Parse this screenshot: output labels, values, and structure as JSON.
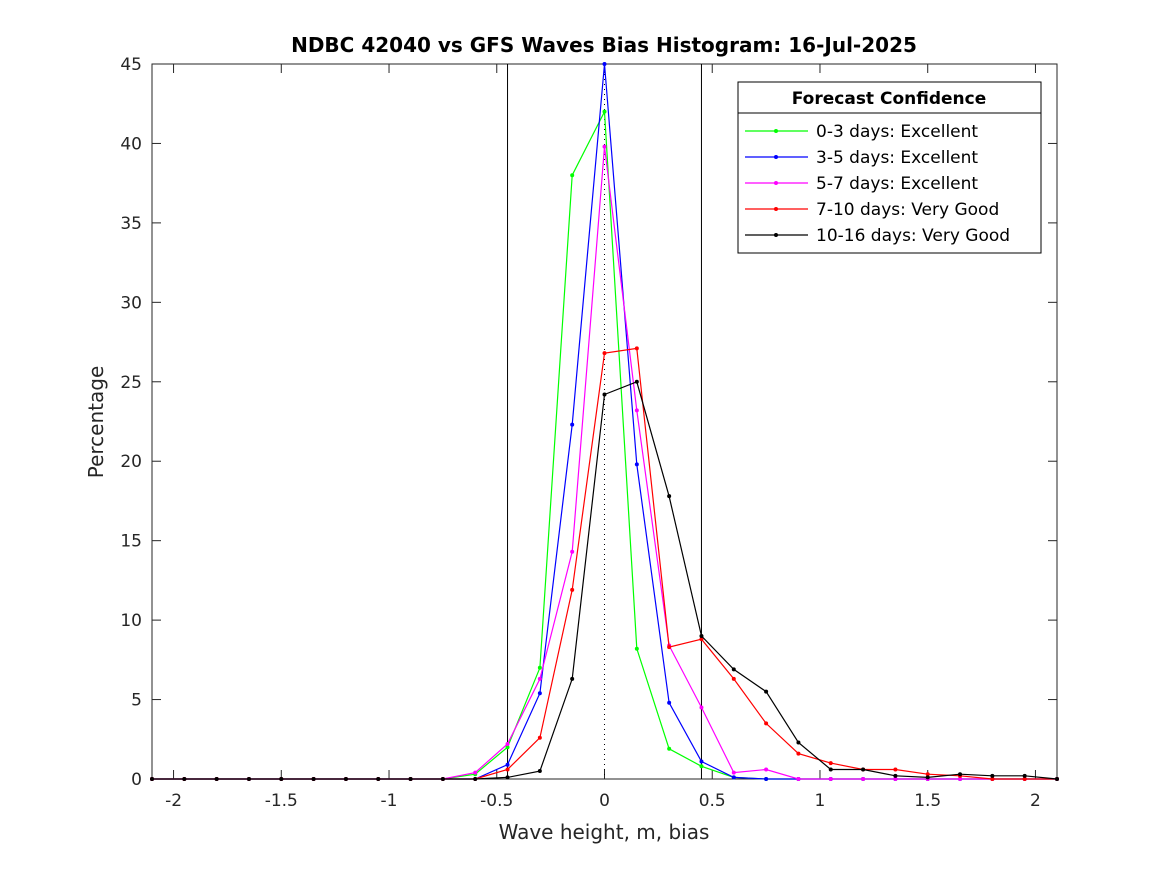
{
  "chart_data": {
    "type": "line",
    "title": "NDBC 42040 vs GFS Waves Bias Histogram: 16-Jul-2025",
    "xlabel": "Wave height, m, bias",
    "ylabel": "Percentage",
    "xlim": [
      -2.1,
      2.1
    ],
    "ylim": [
      0,
      45
    ],
    "xticks": [
      -2,
      -1.5,
      -1,
      -0.5,
      0,
      0.5,
      1,
      1.5,
      2
    ],
    "xtick_labels": [
      "-2",
      "-1.5",
      "-1",
      "-0.5",
      "0",
      "0.5",
      "1",
      "1.5",
      "2"
    ],
    "yticks": [
      0,
      5,
      10,
      15,
      20,
      25,
      30,
      35,
      40,
      45
    ],
    "ytick_labels": [
      "0",
      "5",
      "10",
      "15",
      "20",
      "25",
      "30",
      "35",
      "40",
      "45"
    ],
    "grid": false,
    "legend_title": "Forecast Confidence",
    "legend_position": "top-right",
    "reference_lines": {
      "solid_vertical": [
        -0.45,
        0.45
      ],
      "dotted_vertical": [
        0
      ]
    },
    "x": [
      -2.1,
      -1.95,
      -1.8,
      -1.65,
      -1.5,
      -1.35,
      -1.2,
      -1.05,
      -0.9,
      -0.75,
      -0.6,
      -0.45,
      -0.3,
      -0.15,
      0,
      0.15,
      0.3,
      0.45,
      0.6,
      0.75,
      0.9,
      1.05,
      1.2,
      1.35,
      1.5,
      1.65,
      1.8,
      1.95,
      2.1
    ],
    "series": [
      {
        "name": "0-3 days: Excellent",
        "color": "#00ff00",
        "values": [
          0,
          0,
          0,
          0,
          0,
          0,
          0,
          0,
          0,
          0,
          0.3,
          2.0,
          7.0,
          38.0,
          42.0,
          8.2,
          1.9,
          0.8,
          0.1,
          0,
          0,
          0,
          0,
          0,
          0,
          0,
          0,
          0,
          0
        ]
      },
      {
        "name": "3-5 days: Excellent",
        "color": "#0000ff",
        "values": [
          0,
          0,
          0,
          0,
          0,
          0,
          0,
          0,
          0,
          0,
          0,
          0.9,
          5.4,
          22.3,
          45.0,
          19.8,
          4.8,
          1.1,
          0.1,
          0,
          0,
          0,
          0,
          0,
          0,
          0,
          0,
          0,
          0
        ]
      },
      {
        "name": "5-7 days: Excellent",
        "color": "#ff00ff",
        "values": [
          0,
          0,
          0,
          0,
          0,
          0,
          0,
          0,
          0,
          0,
          0.4,
          2.2,
          6.3,
          14.3,
          39.8,
          23.2,
          8.4,
          4.5,
          0.4,
          0.6,
          0,
          0,
          0,
          0,
          0,
          0,
          0,
          0,
          0
        ]
      },
      {
        "name": "7-10 days: Very Good",
        "color": "#ff0000",
        "values": [
          0,
          0,
          0,
          0,
          0,
          0,
          0,
          0,
          0,
          0,
          0,
          0.6,
          2.6,
          11.9,
          26.8,
          27.1,
          8.3,
          8.8,
          6.3,
          3.5,
          1.6,
          1.0,
          0.6,
          0.6,
          0.3,
          0.2,
          0,
          0,
          0
        ]
      },
      {
        "name": "10-16 days: Very Good",
        "color": "#000000",
        "values": [
          0,
          0,
          0,
          0,
          0,
          0,
          0,
          0,
          0,
          0,
          0,
          0.1,
          0.5,
          6.3,
          24.2,
          25.0,
          17.8,
          9.0,
          6.9,
          5.5,
          2.3,
          0.6,
          0.6,
          0.2,
          0.1,
          0.3,
          0.2,
          0.2,
          0
        ]
      }
    ]
  }
}
